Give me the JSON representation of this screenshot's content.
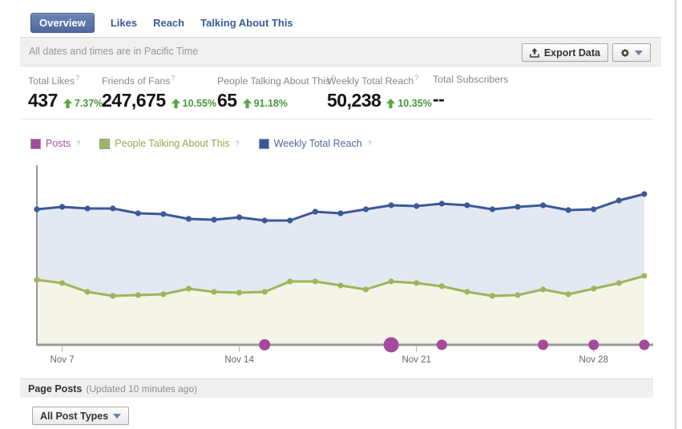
{
  "tabs": [
    {
      "label": "Overview",
      "active": true
    },
    {
      "label": "Likes",
      "active": false
    },
    {
      "label": "Reach",
      "active": false
    },
    {
      "label": "Talking About This",
      "active": false
    }
  ],
  "toolbar": {
    "timezone_note": "All dates and times are in Pacific Time",
    "export_label": "Export Data"
  },
  "ui": {
    "help_glyph": "?"
  },
  "stats": [
    {
      "label": "Total Likes",
      "value": "437",
      "change": "7.37%"
    },
    {
      "label": "Friends of Fans",
      "value": "247,675",
      "change": "10.55%"
    },
    {
      "label": "People Talking About This",
      "value": "65",
      "change": "91.18%"
    },
    {
      "label": "Weekly Total Reach",
      "value": "50,238",
      "change": "10.35%"
    },
    {
      "label": "Total Subscribers",
      "value": "--",
      "change": null
    }
  ],
  "legend": [
    {
      "label": "Posts",
      "color": "#a5499c"
    },
    {
      "label": "People Talking About This",
      "color": "#9cb75b"
    },
    {
      "label": "Weekly Total Reach",
      "color": "#3b5998"
    }
  ],
  "chart_data": {
    "type": "line",
    "title": "",
    "xlabel": "",
    "ylabel": "",
    "x_unit": "days (Nov 6 - Nov 30)",
    "x_days": [
      0,
      1,
      2,
      3,
      4,
      5,
      6,
      7,
      8,
      9,
      10,
      11,
      12,
      13,
      14,
      15,
      16,
      17,
      18,
      19,
      20,
      21,
      22,
      23,
      24
    ],
    "series": [
      {
        "name": "Weekly Total Reach",
        "color": "#3b5998",
        "fill": "#e4e8f3",
        "values": [
          169,
          172,
          170,
          170,
          164,
          163,
          157,
          156,
          159,
          155,
          155,
          166,
          164,
          169,
          174,
          173,
          176,
          174,
          169,
          172,
          174,
          168,
          169,
          180,
          188
        ]
      },
      {
        "name": "People Talking About This",
        "color": "#9cb75b",
        "fill": "#f4f5e6",
        "values": [
          81,
          77,
          66,
          61,
          62,
          63,
          70,
          66,
          65,
          66,
          79,
          79,
          74,
          69,
          79,
          77,
          73,
          66,
          61,
          62,
          69,
          63,
          70,
          77,
          86
        ]
      }
    ],
    "posts_markers": {
      "name": "Posts",
      "color": "#a5499c",
      "days": [
        9,
        14,
        16,
        20,
        22,
        24
      ],
      "radii": [
        7,
        9.5,
        6.5,
        6.5,
        6.5,
        6.5
      ]
    },
    "x_ticks": [
      {
        "day": 1,
        "label": "Nov 7"
      },
      {
        "day": 8,
        "label": "Nov 14"
      },
      {
        "day": 15,
        "label": "Nov 21"
      },
      {
        "day": 22,
        "label": "Nov 28"
      }
    ],
    "ylim": [
      0,
      224
    ],
    "grid": false,
    "legend_position": "top",
    "axis_color": "#999999"
  },
  "page_posts": {
    "title": "Page Posts",
    "updated": "(Updated 10 minutes ago)",
    "filter_label": "All Post Types"
  }
}
